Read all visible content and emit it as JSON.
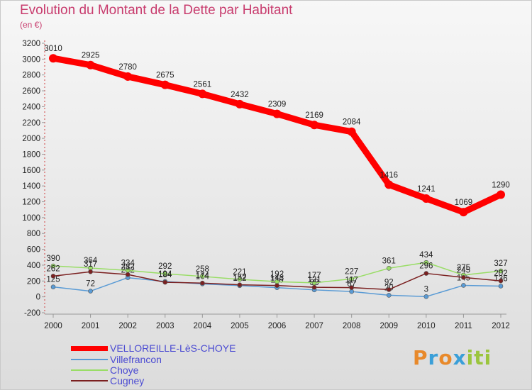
{
  "header": {
    "title": "Evolution du Montant de la Dette par Habitant",
    "subtitle": "(en €)"
  },
  "logo": {
    "text": "Proxiti"
  },
  "chart_data": {
    "type": "line",
    "title": "Evolution du Montant de la Dette par Habitant",
    "subtitle": "(en €)",
    "x": [
      2000,
      2001,
      2002,
      2003,
      2004,
      2005,
      2006,
      2007,
      2008,
      2009,
      2010,
      2011,
      2012
    ],
    "ylim": [
      -200,
      3200
    ],
    "yticks": [
      -200,
      0,
      200,
      400,
      600,
      800,
      1000,
      1200,
      1400,
      1600,
      1800,
      2000,
      2200,
      2400,
      2600,
      2800,
      3000,
      3200
    ],
    "grid": false,
    "legend_position": "bottom-left",
    "series": [
      {
        "name": "VELLOREILLE-LèS-CHOYE",
        "color": "#ff0000",
        "values": [
          3010,
          2925,
          2780,
          2675,
          2561,
          2432,
          2309,
          2169,
          2084,
          1416,
          1241,
          1069,
          1290
        ]
      },
      {
        "name": "Villefrancon",
        "color": "#5a9bd5",
        "values": [
          125,
          72,
          242,
          194,
          164,
          142,
          116,
          88,
          67,
          20,
          3,
          145,
          136
        ]
      },
      {
        "name": "Choye",
        "color": "#99dd66",
        "values": [
          390,
          364,
          334,
          292,
          258,
          221,
          192,
          177,
          227,
          361,
          434,
          275,
          327
        ]
      },
      {
        "name": "Cugney",
        "color": "#7b2020",
        "values": [
          262,
          317,
          282,
          184,
          174,
          152,
          143,
          121,
          117,
          92,
          296,
          245,
          202
        ]
      }
    ]
  }
}
